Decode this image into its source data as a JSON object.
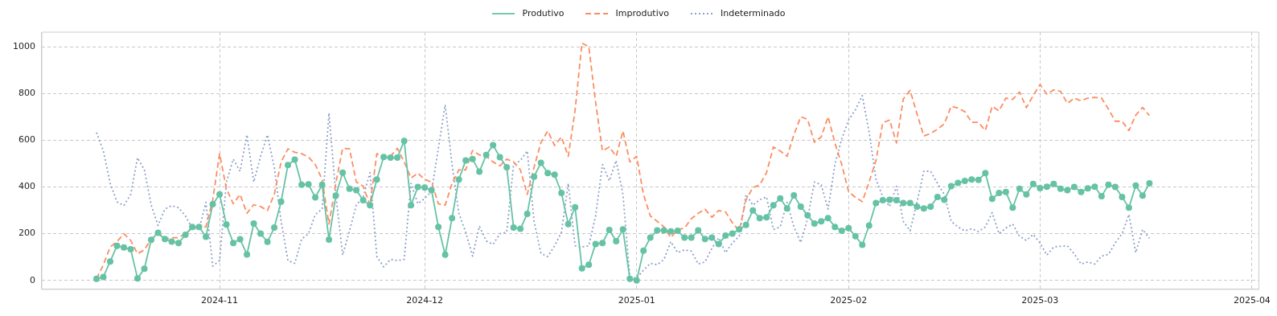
{
  "chart_data": {
    "type": "line",
    "grid": true,
    "legend": "top",
    "x": [
      "2024-10-14",
      "2024-10-15",
      "2024-10-16",
      "2024-10-17",
      "2024-10-18",
      "2024-10-19",
      "2024-10-20",
      "2024-10-21",
      "2024-10-22",
      "2024-10-23",
      "2024-10-24",
      "2024-10-25",
      "2024-10-26",
      "2024-10-27",
      "2024-10-28",
      "2024-10-29",
      "2024-10-30",
      "2024-10-31",
      "2024-11-01",
      "2024-11-02",
      "2024-11-03",
      "2024-11-04",
      "2024-11-05",
      "2024-11-06",
      "2024-11-07",
      "2024-11-08",
      "2024-11-09",
      "2024-11-10",
      "2024-11-11",
      "2024-11-12",
      "2024-11-13",
      "2024-11-14",
      "2024-11-15",
      "2024-11-16",
      "2024-11-17",
      "2024-11-18",
      "2024-11-19",
      "2024-11-20",
      "2024-11-21",
      "2024-11-22",
      "2024-11-23",
      "2024-11-24",
      "2024-11-25",
      "2024-11-26",
      "2024-11-27",
      "2024-11-28",
      "2024-11-29",
      "2024-11-30",
      "2024-12-01",
      "2024-12-02",
      "2024-12-03",
      "2024-12-04",
      "2024-12-05",
      "2024-12-06",
      "2024-12-07",
      "2024-12-08",
      "2024-12-09",
      "2024-12-10",
      "2024-12-11",
      "2024-12-12",
      "2024-12-13",
      "2024-12-14",
      "2024-12-15",
      "2024-12-16",
      "2024-12-17",
      "2024-12-18",
      "2024-12-19",
      "2024-12-20",
      "2024-12-21",
      "2024-12-22",
      "2024-12-23",
      "2024-12-24",
      "2024-12-25",
      "2024-12-26",
      "2024-12-27",
      "2024-12-28",
      "2024-12-29",
      "2024-12-30",
      "2024-12-31",
      "2025-01-01",
      "2025-01-02",
      "2025-01-03",
      "2025-01-04",
      "2025-01-05",
      "2025-01-06",
      "2025-01-07",
      "2025-01-08",
      "2025-01-09",
      "2025-01-10",
      "2025-01-11",
      "2025-01-12",
      "2025-01-13",
      "2025-01-14",
      "2025-01-15",
      "2025-01-16",
      "2025-01-17",
      "2025-01-18",
      "2025-01-19",
      "2025-01-20",
      "2025-01-21",
      "2025-01-22",
      "2025-01-23",
      "2025-01-24",
      "2025-01-25",
      "2025-01-26",
      "2025-01-27",
      "2025-01-28",
      "2025-01-29",
      "2025-01-30",
      "2025-01-31",
      "2025-02-01",
      "2025-02-02",
      "2025-02-03",
      "2025-02-04",
      "2025-02-05",
      "2025-02-06",
      "2025-02-07",
      "2025-02-08",
      "2025-02-09",
      "2025-02-10",
      "2025-02-11",
      "2025-02-12",
      "2025-02-13",
      "2025-02-14",
      "2025-02-15",
      "2025-02-16",
      "2025-02-17",
      "2025-02-18",
      "2025-02-19",
      "2025-02-20",
      "2025-02-21",
      "2025-02-22",
      "2025-02-23",
      "2025-02-24",
      "2025-02-25",
      "2025-02-26",
      "2025-02-27",
      "2025-02-28",
      "2025-03-01",
      "2025-03-02",
      "2025-03-03",
      "2025-03-04",
      "2025-03-05",
      "2025-03-06",
      "2025-03-07",
      "2025-03-08",
      "2025-03-09",
      "2025-03-10",
      "2025-03-11",
      "2025-03-12",
      "2025-03-13",
      "2025-03-14",
      "2025-03-15",
      "2025-03-16",
      "2025-03-17"
    ],
    "series": [
      {
        "name": "Produtivo",
        "color": "#66c2a5",
        "marker": "circle",
        "line_style": "solid",
        "values": [
          7,
          15,
          81,
          148,
          141,
          133,
          9,
          50,
          174,
          204,
          177,
          166,
          160,
          195,
          229,
          229,
          187,
          326,
          368,
          239,
          160,
          176,
          111,
          243,
          200,
          165,
          226,
          337,
          494,
          517,
          409,
          411,
          355,
          409,
          175,
          363,
          461,
          392,
          386,
          343,
          322,
          432,
          528,
          525,
          525,
          597,
          322,
          400,
          397,
          386,
          229,
          110,
          267,
          432,
          513,
          519,
          465,
          537,
          579,
          527,
          484,
          226,
          221,
          285,
          444,
          503,
          459,
          452,
          374,
          241,
          313,
          52,
          67,
          156,
          160,
          216,
          168,
          218,
          7,
          0,
          127,
          183,
          214,
          214,
          210,
          212,
          183,
          183,
          214,
          177,
          183,
          156,
          192,
          200,
          218,
          237,
          299,
          267,
          270,
          322,
          351,
          308,
          364,
          316,
          279,
          243,
          253,
          267,
          229,
          212,
          224,
          189,
          152,
          235,
          331,
          343,
          345,
          343,
          331,
          331,
          316,
          308,
          316,
          357,
          345,
          403,
          417,
          426,
          432,
          430,
          459,
          349,
          374,
          378,
          311,
          392,
          368,
          413,
          395,
          401,
          413,
          392,
          386,
          400,
          378,
          394,
          401,
          360,
          409,
          400,
          357,
          311,
          406,
          363,
          415
        ]
      },
      {
        "name": "Improdutivo",
        "color": "#fc8d62",
        "marker": "none",
        "line_style": "dashed",
        "values": [
          7,
          67,
          143,
          166,
          200,
          171,
          114,
          131,
          177,
          200,
          177,
          183,
          183,
          200,
          224,
          229,
          229,
          345,
          542,
          392,
          328,
          368,
          287,
          324,
          316,
          299,
          368,
          507,
          563,
          548,
          542,
          528,
          496,
          432,
          241,
          415,
          565,
          563,
          421,
          403,
          322,
          542,
          528,
          531,
          565,
          507,
          438,
          459,
          432,
          421,
          328,
          322,
          415,
          473,
          473,
          556,
          537,
          531,
          507,
          490,
          519,
          507,
          473,
          368,
          484,
          590,
          639,
          577,
          614,
          531,
          728,
          1015,
          1000,
          762,
          554,
          571,
          531,
          639,
          507,
          531,
          368,
          276,
          253,
          229,
          183,
          218,
          224,
          264,
          287,
          305,
          270,
          299,
          293,
          247,
          212,
          345,
          397,
          409,
          461,
          571,
          554,
          531,
          623,
          700,
          689,
          591,
          614,
          700,
          588,
          496,
          380,
          355,
          337,
          421,
          513,
          675,
          686,
          588,
          776,
          813,
          713,
          618,
          629,
          647,
          670,
          745,
          737,
          722,
          676,
          676,
          641,
          745,
          725,
          780,
          774,
          806,
          739,
          791,
          838,
          797,
          815,
          809,
          757,
          780,
          768,
          780,
          783,
          780,
          733,
          681,
          681,
          641,
          707,
          740,
          705
        ]
      },
      {
        "name": "Indeterminado",
        "color": "#8da0cb",
        "marker": "none",
        "line_style": "dotted",
        "values": [
          633,
          554,
          415,
          336,
          320,
          368,
          525,
          473,
          322,
          235,
          305,
          320,
          311,
          276,
          224,
          218,
          334,
          61,
          85,
          421,
          519,
          467,
          623,
          421,
          531,
          623,
          484,
          253,
          85,
          73,
          177,
          200,
          282,
          305,
          716,
          368,
          108,
          212,
          322,
          357,
          461,
          102,
          58,
          90,
          85,
          90,
          415,
          328,
          351,
          380,
          565,
          751,
          496,
          287,
          206,
          104,
          232,
          169,
          154,
          200,
          206,
          496,
          513,
          554,
          253,
          116,
          102,
          148,
          206,
          415,
          148,
          143,
          148,
          276,
          496,
          426,
          513,
          368,
          15,
          9,
          44,
          73,
          67,
          90,
          166,
          119,
          131,
          125,
          70,
          79,
          137,
          183,
          119,
          160,
          189,
          368,
          322,
          345,
          357,
          218,
          229,
          334,
          229,
          162,
          264,
          421,
          409,
          305,
          496,
          606,
          686,
          730,
          791,
          634,
          434,
          357,
          316,
          403,
          253,
          212,
          334,
          467,
          467,
          415,
          368,
          253,
          229,
          212,
          221,
          209,
          229,
          290,
          200,
          224,
          241,
          189,
          171,
          197,
          160,
          108,
          143,
          146,
          148,
          114,
          70,
          79,
          70,
          104,
          111,
          160,
          200,
          282,
          119,
          218,
          180
        ]
      }
    ],
    "xlim": [
      "2024-10-06",
      "2025-04-02"
    ],
    "xticks": [
      "2024-11",
      "2024-12",
      "2025-01",
      "2025-02",
      "2025-03",
      "2025-04"
    ],
    "ylim": [
      -38,
      1062
    ],
    "yticks": [
      0,
      200,
      400,
      600,
      800,
      1000
    ]
  }
}
